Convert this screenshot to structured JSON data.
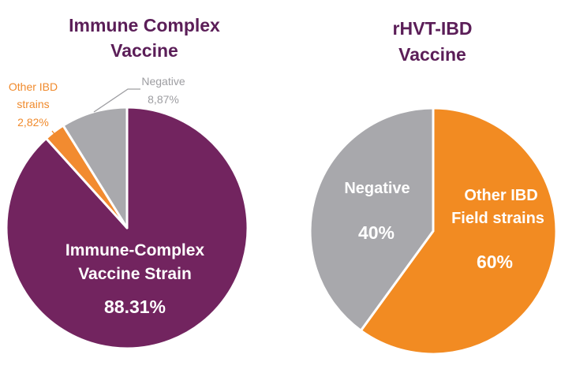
{
  "chart_data": [
    {
      "type": "pie",
      "title_lines": [
        "Immune Complex",
        "Vaccine"
      ],
      "slices": [
        {
          "label_lines": [
            "Immune-Complex",
            "Vaccine Strain"
          ],
          "pct_label": "88.31%",
          "value": 88.31,
          "color": "#72245f"
        },
        {
          "label_lines": [
            "Other IBD",
            "strains"
          ],
          "pct_label": "2,82%",
          "value": 2.82,
          "color": "#f28b30",
          "label_color": "#f08a2c"
        },
        {
          "label_lines": [
            "Negative"
          ],
          "pct_label": "8,87%",
          "value": 8.87,
          "color": "#a9a9ad",
          "label_color": "#9d9da1"
        }
      ]
    },
    {
      "type": "pie",
      "title_lines": [
        "rHVT-IBD",
        "Vaccine"
      ],
      "slices": [
        {
          "label_lines": [
            "Other IBD",
            "Field strains"
          ],
          "pct_label": "60%",
          "value": 60,
          "color": "#f28b22"
        },
        {
          "label_lines": [
            "Negative"
          ],
          "pct_label": "40%",
          "value": 40,
          "color": "#a8a8ac"
        }
      ]
    }
  ]
}
